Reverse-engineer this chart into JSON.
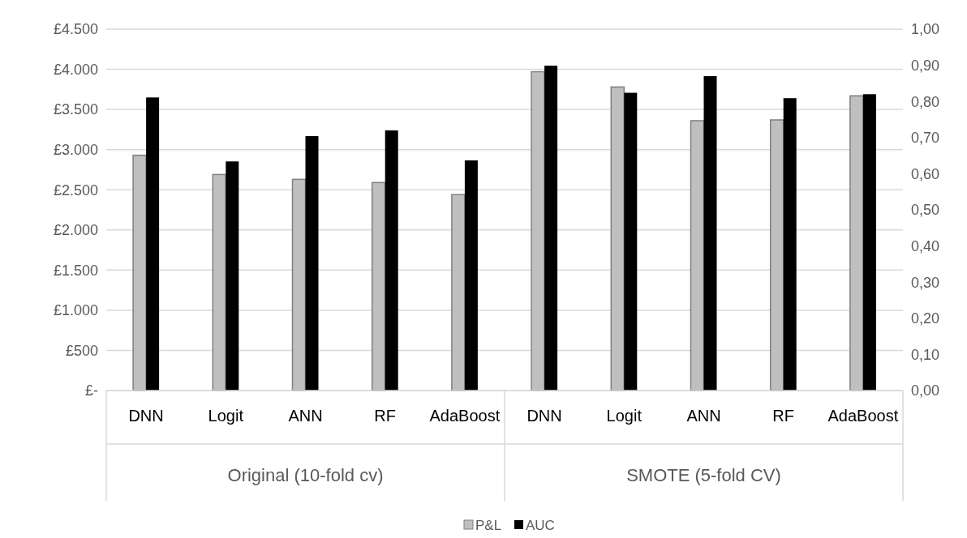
{
  "chart_data": {
    "type": "bar",
    "categories": [
      "DNN",
      "Logit",
      "ANN",
      "RF",
      "AdaBoost",
      "DNN",
      "Logit",
      "ANN",
      "RF",
      "AdaBoost"
    ],
    "series": [
      {
        "name": "P&L",
        "color": "#bfbfbf",
        "values": [
          2930,
          2690,
          2630,
          2590,
          2440,
          3970,
          3780,
          3360,
          3370,
          3670
        ]
      },
      {
        "name": "AUC",
        "color": "#000000",
        "axis": "y2",
        "values": [
          0.811,
          0.634,
          0.704,
          0.72,
          0.637,
          0.899,
          0.824,
          0.87,
          0.809,
          0.82
        ]
      }
    ],
    "ylim": [
      0,
      4500
    ],
    "yticks": [
      {
        "value": 0,
        "label": "£-"
      },
      {
        "value": 500,
        "label": "£500"
      },
      {
        "value": 1000,
        "label": "£1.000"
      },
      {
        "value": 1500,
        "label": "£1.500"
      },
      {
        "value": 2000,
        "label": "£2.000"
      },
      {
        "value": 2500,
        "label": "£2.500"
      },
      {
        "value": 3000,
        "label": "£3.000"
      },
      {
        "value": 3500,
        "label": "£3.500"
      },
      {
        "value": 4000,
        "label": "£4.000"
      },
      {
        "value": 4500,
        "label": "£4.500"
      }
    ],
    "y2lim": [
      0,
      1
    ],
    "y2ticks": [
      {
        "value": 0,
        "label": "0,00"
      },
      {
        "value": 0.1,
        "label": "0,10"
      },
      {
        "value": 0.2,
        "label": "0,20"
      },
      {
        "value": 0.3,
        "label": "0,30"
      },
      {
        "value": 0.4,
        "label": "0,40"
      },
      {
        "value": 0.5,
        "label": "0,50"
      },
      {
        "value": 0.6,
        "label": "0,60"
      },
      {
        "value": 0.7,
        "label": "0,70"
      },
      {
        "value": 0.8,
        "label": "0,80"
      },
      {
        "value": 0.9,
        "label": "0,90"
      },
      {
        "value": 1,
        "label": "1,00"
      }
    ],
    "annotations": [
      "Original (10-fold cv)",
      "SMOTE (5-fold CV)"
    ],
    "grid": "y",
    "legend": "bottom"
  }
}
